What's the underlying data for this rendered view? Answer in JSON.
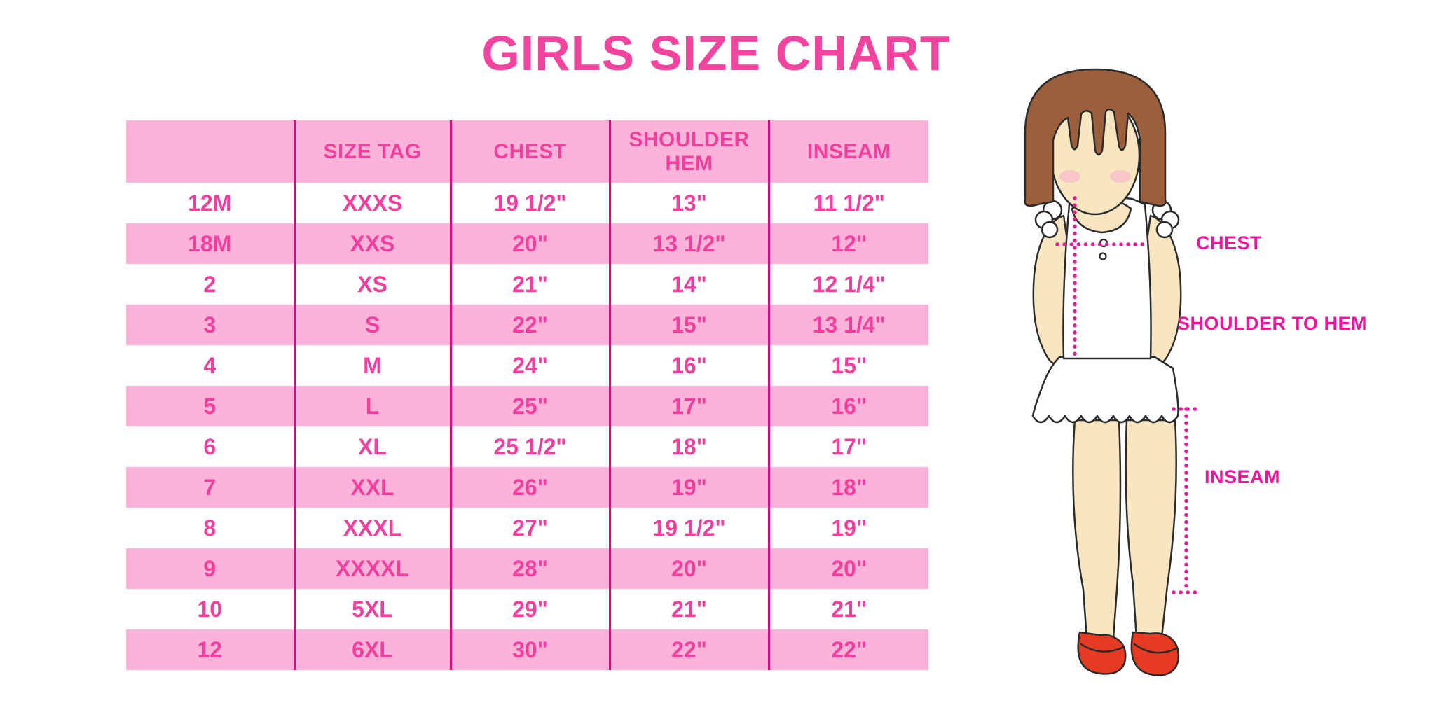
{
  "title": "GIRLS SIZE CHART",
  "chart_data": {
    "type": "table",
    "title": "GIRLS SIZE CHART",
    "columns": [
      "",
      "SIZE TAG",
      "CHEST",
      "SHOULDER HEM",
      "INSEAM"
    ],
    "rows": [
      [
        "12M",
        "XXXS",
        "19 1/2\"",
        "13\"",
        "11 1/2\""
      ],
      [
        "18M",
        "XXS",
        "20\"",
        "13 1/2\"",
        "12\""
      ],
      [
        "2",
        "XS",
        "21\"",
        "14\"",
        "12 1/4\""
      ],
      [
        "3",
        "S",
        "22\"",
        "15\"",
        "13 1/4\""
      ],
      [
        "4",
        "M",
        "24\"",
        "16\"",
        "15\""
      ],
      [
        "5",
        "L",
        "25\"",
        "17\"",
        "16\""
      ],
      [
        "6",
        "XL",
        "25 1/2\"",
        "18\"",
        "17\""
      ],
      [
        "7",
        "XXL",
        "26\"",
        "19\"",
        "18\""
      ],
      [
        "8",
        "XXXL",
        "27\"",
        "19 1/2\"",
        "19\""
      ],
      [
        "9",
        "XXXXL",
        "28\"",
        "20\"",
        "20\""
      ],
      [
        "10",
        "5XL",
        "29\"",
        "21\"",
        "21\""
      ],
      [
        "12",
        "6XL",
        "30\"",
        "22\"",
        "22\""
      ]
    ],
    "row_striping": "header pink, data rows alternate white/pink starting white"
  },
  "diagram": {
    "chest_label": "CHEST",
    "shoulder_to_hem_label": "SHOULDER TO HEM",
    "inseam_label": "INSEAM"
  },
  "colors": {
    "title_pink": "#F2449E",
    "cell_text_pink": "#F23F9D",
    "row_background_pink": "#FBB3D9",
    "divider_magenta": "#E4007F",
    "dotted_line_magenta": "#F0169A",
    "label_magenta": "#F2149B",
    "hair_brown": "#9C5F3B",
    "skin": "#F8E6C1",
    "shoe_red": "#E63A23"
  }
}
